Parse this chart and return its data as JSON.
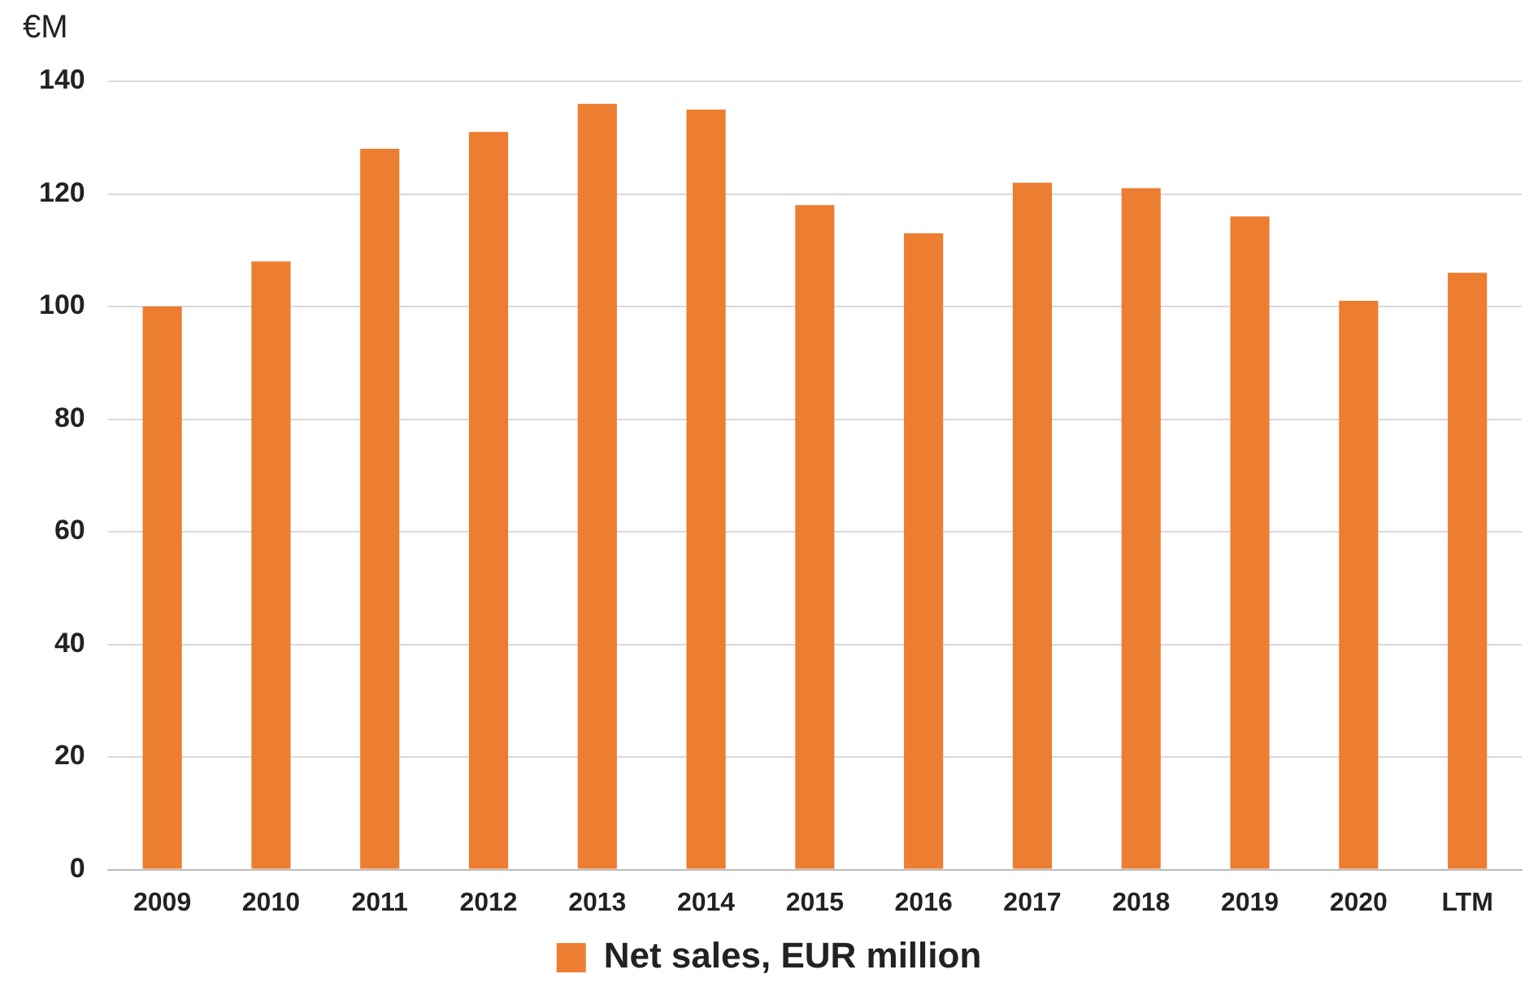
{
  "chart_data": {
    "type": "bar",
    "ylabel": "€M",
    "categories": [
      "2009",
      "2010",
      "2011",
      "2012",
      "2013",
      "2014",
      "2015",
      "2016",
      "2017",
      "2018",
      "2019",
      "2020",
      "LTM"
    ],
    "series": [
      {
        "name": "Net sales, EUR million",
        "color": "#ed7d31",
        "values": [
          100,
          108,
          128,
          131,
          136,
          135,
          118,
          113,
          122,
          121,
          116,
          101,
          106
        ]
      }
    ],
    "ylim": [
      0,
      140
    ],
    "yticks": [
      0,
      20,
      40,
      60,
      80,
      100,
      120,
      140
    ],
    "grid": "y",
    "legend": "bottom"
  }
}
